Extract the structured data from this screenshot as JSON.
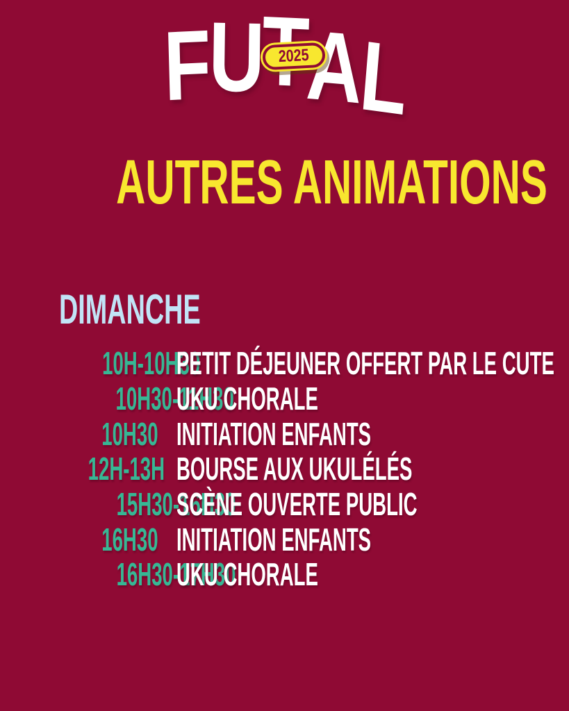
{
  "poster": {
    "background_color": "#8F0A34",
    "accent_yellow": "#F8E72F",
    "accent_teal": "#37B794",
    "accent_light_blue": "#C1E4F6",
    "text_white": "#FFFFFF"
  },
  "logo": {
    "word": "FUTAL",
    "letters": [
      "F",
      "U",
      "T",
      "A",
      "L"
    ],
    "badge": {
      "text": "2025",
      "background": "#F8E72F",
      "foreground": "#8F0A34"
    }
  },
  "title": {
    "text": "AUTRES ANIMATIONS"
  },
  "day": {
    "label": "DIMANCHE"
  },
  "schedule": {
    "items": [
      {
        "time": "10H-10H30",
        "event": "PETIT DÉJEUNER OFFERT PAR LE CUTE"
      },
      {
        "time": "10H30-11H30",
        "event": "UKU CHORALE"
      },
      {
        "time": "10H30",
        "event": "INITIATION ENFANTS"
      },
      {
        "time": "12H-13H",
        "event": "BOURSE AUX UKULÉLÉS"
      },
      {
        "time": "15H30-16H30",
        "event": "SCÈNE OUVERTE PUBLIC"
      },
      {
        "time": "16H30",
        "event": "INITIATION ENFANTS"
      },
      {
        "time": "16H30-17H30",
        "event": "UKU CHORALE"
      }
    ]
  }
}
